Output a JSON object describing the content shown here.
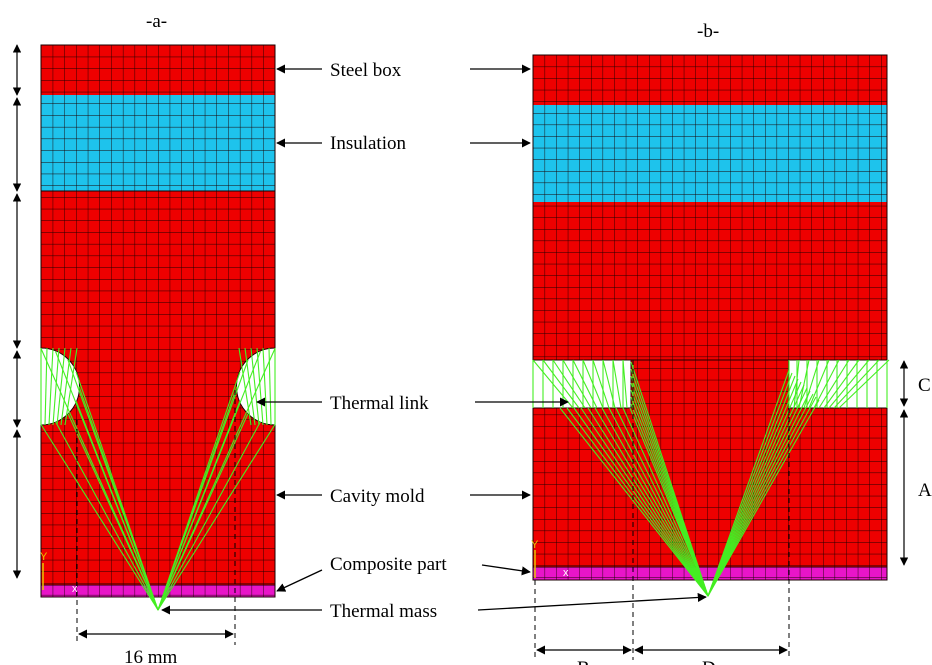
{
  "panels": {
    "a": {
      "title": "-a-"
    },
    "b": {
      "title": "-b-"
    }
  },
  "labels": {
    "steel_box": "Steel box",
    "insulation": "Insulation",
    "thermal_link": "Thermal link",
    "cavity_mold": "Cavity mold",
    "composite_part": "Composite part",
    "thermal_mass": "Thermal mass"
  },
  "dimensions": {
    "a_width": "16 mm",
    "A": "A",
    "B": "B",
    "C": "C",
    "D": "D"
  },
  "axis_marker": {
    "y": "Y",
    "x": "x"
  },
  "colors": {
    "steel": "#ee0000",
    "insulation": "#1ec3ec",
    "composite": "#e815c8",
    "link": "#44ee22",
    "mesh_line": "#1a0000"
  }
}
